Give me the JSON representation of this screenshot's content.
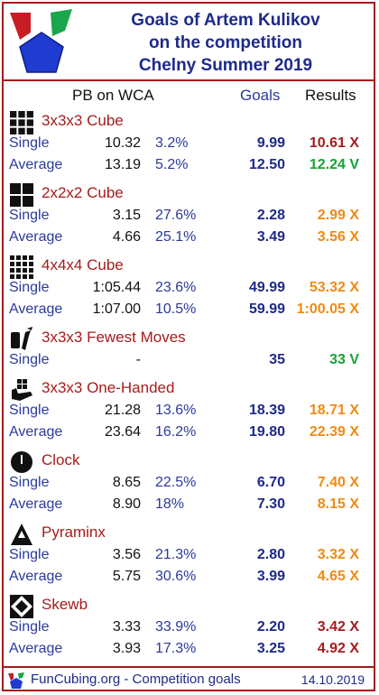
{
  "title": {
    "line1": "Goals of Artem Kulikov",
    "line2": "on the competition",
    "line3": "Chelny Summer 2019"
  },
  "columns": {
    "pb": "PB on WCA",
    "goals": "Goals",
    "results": "Results"
  },
  "colors": {
    "border": "#a51c1c",
    "title": "#1d2a8a",
    "miss_dark": "#a51c1c",
    "miss_orange": "#f08a14",
    "hit_green": "#17a235"
  },
  "events": [
    {
      "icon": "cube-3x3-icon",
      "name": "3x3x3 Cube",
      "rows": [
        {
          "label": "Single",
          "pb": "10.32",
          "pct": "3.2%",
          "goal": "9.99",
          "result": "10.61 X",
          "result_color": "#a51c1c"
        },
        {
          "label": "Average",
          "pb": "13.19",
          "pct": "5.2%",
          "goal": "12.50",
          "result": "12.24 V",
          "result_color": "#17a235"
        }
      ]
    },
    {
      "icon": "cube-2x2-icon",
      "name": "2x2x2 Cube",
      "rows": [
        {
          "label": "Single",
          "pb": "3.15",
          "pct": "27.6%",
          "goal": "2.28",
          "result": "2.99 X",
          "result_color": "#f08a14"
        },
        {
          "label": "Average",
          "pb": "4.66",
          "pct": "25.1%",
          "goal": "3.49",
          "result": "3.56 X",
          "result_color": "#f08a14"
        }
      ]
    },
    {
      "icon": "cube-4x4-icon",
      "name": "4x4x4 Cube",
      "rows": [
        {
          "label": "Single",
          "pb": "1:05.44",
          "pct": "23.6%",
          "goal": "49.99",
          "result": "53.32 X",
          "result_color": "#f08a14"
        },
        {
          "label": "Average",
          "pb": "1:07.00",
          "pct": "10.5%",
          "goal": "59.99",
          "result": "1:00.05 X",
          "result_color": "#f08a14"
        }
      ]
    },
    {
      "icon": "fewest-moves-icon",
      "name": "3x3x3 Fewest Moves",
      "rows": [
        {
          "label": "Single",
          "pb": "-",
          "pct": "",
          "goal": "35",
          "result": "33 V",
          "result_color": "#17a235"
        }
      ]
    },
    {
      "icon": "one-handed-icon",
      "name": "3x3x3 One-Handed",
      "rows": [
        {
          "label": "Single",
          "pb": "21.28",
          "pct": "13.6%",
          "goal": "18.39",
          "result": "18.71 X",
          "result_color": "#f08a14"
        },
        {
          "label": "Average",
          "pb": "23.64",
          "pct": "16.2%",
          "goal": "19.80",
          "result": "22.39 X",
          "result_color": "#f08a14"
        }
      ]
    },
    {
      "icon": "clock-icon",
      "name": "Clock",
      "rows": [
        {
          "label": "Single",
          "pb": "8.65",
          "pct": "22.5%",
          "goal": "6.70",
          "result": "7.40 X",
          "result_color": "#f08a14"
        },
        {
          "label": "Average",
          "pb": "8.90",
          "pct": "18%",
          "goal": "7.30",
          "result": "8.15 X",
          "result_color": "#f08a14"
        }
      ]
    },
    {
      "icon": "pyraminx-icon",
      "name": "Pyraminx",
      "rows": [
        {
          "label": "Single",
          "pb": "3.56",
          "pct": "21.3%",
          "goal": "2.80",
          "result": "3.32 X",
          "result_color": "#f08a14"
        },
        {
          "label": "Average",
          "pb": "5.75",
          "pct": "30.6%",
          "goal": "3.99",
          "result": "4.65 X",
          "result_color": "#f08a14"
        }
      ]
    },
    {
      "icon": "skewb-icon",
      "name": "Skewb",
      "rows": [
        {
          "label": "Single",
          "pb": "3.33",
          "pct": "33.9%",
          "goal": "2.20",
          "result": "3.42 X",
          "result_color": "#a51c1c"
        },
        {
          "label": "Average",
          "pb": "3.93",
          "pct": "17.3%",
          "goal": "3.25",
          "result": "4.92 X",
          "result_color": "#a51c1c"
        }
      ]
    }
  ],
  "footer": {
    "site": "FunCubing.org - Competition goals",
    "date": "14.10.2019",
    "icon": "funcubing-logo-icon"
  }
}
